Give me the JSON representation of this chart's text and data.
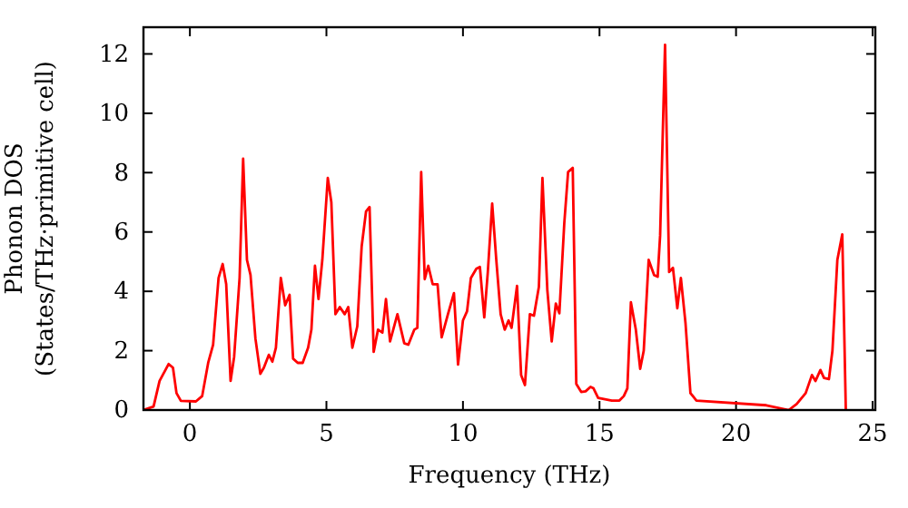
{
  "chart_data": {
    "type": "line",
    "xlabel": "Frequency (THz)",
    "ylabel": "Phonon DOS\n(States/THz·primitive cell)",
    "xlim": [
      -1.7,
      25.1
    ],
    "ylim": [
      0,
      12.9
    ],
    "xticks": [
      0,
      5,
      10,
      15,
      20,
      25
    ],
    "yticks": [
      0,
      2,
      4,
      6,
      8,
      10,
      12
    ],
    "grid": false,
    "marker": "none",
    "line_style": "solid",
    "series": [
      {
        "color": "#ff0000",
        "x": [
          -1.7,
          -1.33,
          -1.11,
          -0.78,
          -0.62,
          -0.49,
          -0.33,
          0.22,
          0.45,
          0.67,
          0.85,
          1.05,
          1.2,
          1.33,
          1.49,
          1.62,
          1.82,
          1.95,
          2.09,
          2.22,
          2.4,
          2.58,
          2.71,
          2.89,
          3.02,
          3.15,
          3.33,
          3.49,
          3.65,
          3.78,
          3.95,
          4.13,
          4.33,
          4.45,
          4.58,
          4.71,
          4.85,
          5.05,
          5.18,
          5.33,
          5.49,
          5.67,
          5.8,
          5.95,
          6.13,
          6.29,
          6.45,
          6.58,
          6.73,
          6.89,
          7.05,
          7.18,
          7.33,
          7.6,
          7.85,
          8.0,
          8.22,
          8.33,
          8.47,
          8.6,
          8.73,
          8.89,
          9.07,
          9.22,
          9.45,
          9.67,
          9.82,
          10.0,
          10.15,
          10.29,
          10.49,
          10.62,
          10.78,
          10.91,
          11.07,
          11.22,
          11.38,
          11.53,
          11.67,
          11.78,
          11.98,
          12.13,
          12.27,
          12.45,
          12.6,
          12.78,
          12.91,
          13.09,
          13.25,
          13.4,
          13.53,
          13.71,
          13.85,
          14.02,
          14.15,
          14.33,
          14.49,
          14.67,
          14.78,
          14.95,
          15.45,
          15.73,
          15.89,
          16.02,
          16.15,
          16.33,
          16.49,
          16.62,
          16.8,
          17.0,
          17.13,
          17.22,
          17.4,
          17.55,
          17.69,
          17.85,
          17.98,
          18.15,
          18.33,
          18.55,
          21.11,
          21.93,
          22.22,
          22.55,
          22.78,
          22.91,
          23.09,
          23.22,
          23.4,
          23.53,
          23.71,
          23.89,
          24.02
        ],
        "values": [
          0,
          0.12,
          0.98,
          1.55,
          1.43,
          0.57,
          0.31,
          0.29,
          0.47,
          1.59,
          2.2,
          4.45,
          4.92,
          4.24,
          0.98,
          1.79,
          4.45,
          8.47,
          5.06,
          4.55,
          2.41,
          1.22,
          1.43,
          1.86,
          1.63,
          2.1,
          4.45,
          3.53,
          3.88,
          1.73,
          1.59,
          1.59,
          2.1,
          2.71,
          4.86,
          3.74,
          5.06,
          7.82,
          7.0,
          3.23,
          3.47,
          3.23,
          3.47,
          2.1,
          2.82,
          5.51,
          6.69,
          6.84,
          1.96,
          2.71,
          2.61,
          3.74,
          2.31,
          3.23,
          2.25,
          2.2,
          2.71,
          2.77,
          8.02,
          4.41,
          4.86,
          4.24,
          4.24,
          2.45,
          3.23,
          3.94,
          1.53,
          3.02,
          3.33,
          4.45,
          4.76,
          4.82,
          3.12,
          4.65,
          6.96,
          5.06,
          3.23,
          2.71,
          3.02,
          2.77,
          4.18,
          1.18,
          0.84,
          3.23,
          3.18,
          4.15,
          7.82,
          4.04,
          2.31,
          3.59,
          3.26,
          6.29,
          8.02,
          8.16,
          0.88,
          0.61,
          0.63,
          0.78,
          0.73,
          0.41,
          0.32,
          0.32,
          0.47,
          0.73,
          3.63,
          2.71,
          1.39,
          2.0,
          5.06,
          4.55,
          4.49,
          5.88,
          12.31,
          4.65,
          4.79,
          3.43,
          4.45,
          2.92,
          0.57,
          0.32,
          0.16,
          0,
          0.2,
          0.57,
          1.18,
          0.98,
          1.35,
          1.08,
          1.04,
          2.0,
          5.06,
          5.92,
          0
        ]
      }
    ]
  }
}
